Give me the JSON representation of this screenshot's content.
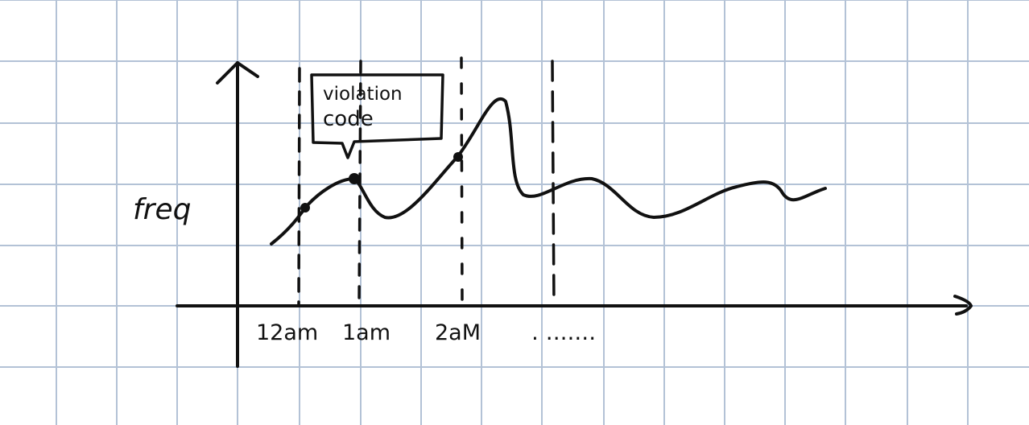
{
  "chart_data": {
    "type": "line",
    "title": "",
    "ylabel": "freq",
    "xlabel": "",
    "x_tick_labels": [
      "12am",
      "1am",
      "2aM",
      ". ......."
    ],
    "callout": {
      "text_line1": "violation",
      "text_line2": "code"
    },
    "grid": true,
    "background": "#ffffff",
    "grid_color": "#b3c2d6",
    "ink_color": "#111111"
  }
}
